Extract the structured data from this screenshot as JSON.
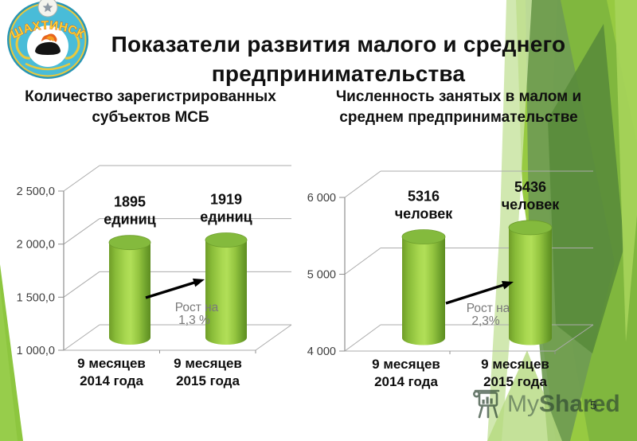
{
  "slide": {
    "title": "Показатели развития малого и среднего предпринимательства",
    "page_number": "5",
    "watermark_my": "My",
    "watermark_shared": "Shared",
    "emblem_text": "ШАХТИНСК"
  },
  "sections": [
    {
      "header": "Количество зарегистрированных субъектов МСБ"
    },
    {
      "header": "Численность занятых в малом и среднем предпринимательстве"
    }
  ],
  "chart_data": [
    {
      "type": "bar",
      "style": "3d-cylinder",
      "title": "Количество зарегистрированных субъектов МСБ",
      "categories": [
        "9 месяцев\n2014 года",
        "9 месяцев\n2015 года"
      ],
      "values": [
        1895,
        1919
      ],
      "bar_labels": [
        "1895\nединиц",
        "1919\nединиц"
      ],
      "ylim": [
        1000,
        2500
      ],
      "yticks": [
        {
          "value": 1000,
          "label": "1 000,0"
        },
        {
          "value": 1500,
          "label": "1 500,0"
        },
        {
          "value": 2000,
          "label": "2 000,0"
        },
        {
          "value": 2500,
          "label": "2 500,0"
        }
      ],
      "annotation": "Рост на\n1,3 %",
      "grid": true,
      "legend": false,
      "bar_color": "#8cc63e"
    },
    {
      "type": "bar",
      "style": "3d-cylinder",
      "title": "Численность занятых в малом и среднем предпринимательстве",
      "categories": [
        "9 месяцев\n2014 года",
        "9 месяцев\n2015 года"
      ],
      "values": [
        5316,
        5436
      ],
      "bar_labels": [
        "5316\nчеловек",
        "5436\nчеловек"
      ],
      "ylim": [
        4000,
        6000
      ],
      "yticks": [
        {
          "value": 4000,
          "label": "4 000"
        },
        {
          "value": 5000,
          "label": "5 000"
        },
        {
          "value": 6000,
          "label": "6 000"
        }
      ],
      "annotation": "Рост на\n2,3%",
      "grid": true,
      "legend": false,
      "bar_color": "#8cc63e"
    }
  ],
  "colors": {
    "accent_green": "#8cc63e",
    "annotation_gray": "#7a7a7a",
    "grid_gray": "#ababab",
    "axis_gray": "#8f8f8f",
    "emblem_teal": "#3bb3d0",
    "emblem_gold": "#eac93d"
  }
}
